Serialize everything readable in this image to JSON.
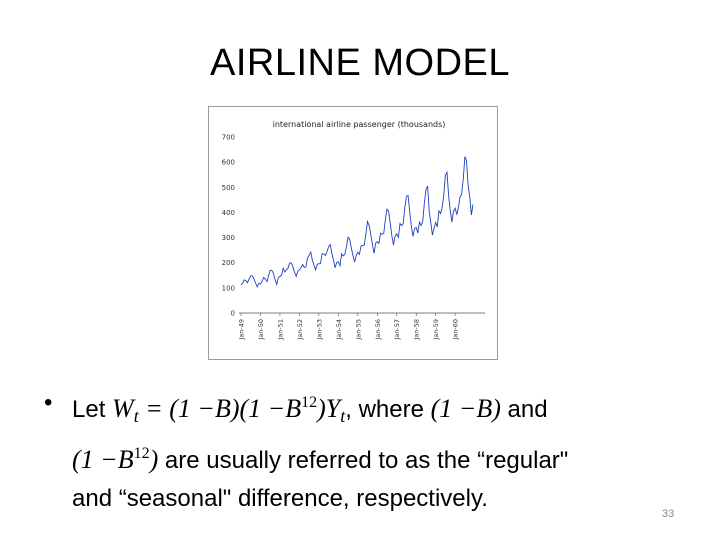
{
  "slide": {
    "title": "AIRLINE MODEL",
    "page_number": "33"
  },
  "bullet": {
    "dot": "•",
    "t1": "Let ",
    "W": "W",
    "t_sub": "t",
    "eq": " = (1 −B)(1 −B",
    "exp12a": "12",
    "eq_close": ")Y",
    "t_sub2": "t",
    "t2": ", where ",
    "m1": "(1 −B)",
    "t3": " and",
    "m2a": "(1 −B",
    "exp12b": "12",
    "m2b": ")",
    "t4": " are usually referred to as the “regular\"",
    "t5": "and “seasonal\" difference, respectively."
  },
  "chart_data": {
    "type": "line",
    "title": "international airline passenger (thousands)",
    "ylim": [
      0,
      700
    ],
    "yticks": [
      "700",
      "600",
      "500",
      "400",
      "300",
      "200",
      "100",
      "0"
    ],
    "xticks": [
      "Jan-49",
      "Jan-50",
      "Jan-51",
      "Jan-52",
      "Jan-53",
      "Jan-54",
      "Jan-55",
      "Jan-56",
      "Jan-57",
      "Jan-58",
      "Jan-59",
      "Jan-60"
    ],
    "grid": false,
    "line_color": "#1f3fbf",
    "series": [
      {
        "values": [
          112,
          118,
          132,
          129,
          121,
          135,
          148,
          148,
          136,
          119,
          104,
          118,
          115,
          126,
          141,
          135,
          125,
          149,
          170,
          170,
          158,
          133,
          114,
          140,
          145,
          150,
          178,
          163,
          172,
          178,
          199,
          199,
          184,
          162,
          146,
          166,
          171,
          180,
          193,
          181,
          183,
          218,
          230,
          242,
          209,
          191,
          172,
          194,
          196,
          196,
          236,
          235,
          229,
          243,
          264,
          272,
          237,
          211,
          180,
          201,
          204,
          188,
          235,
          227,
          234,
          264,
          302,
          293,
          259,
          229,
          203,
          229,
          242,
          233,
          267,
          269,
          270,
          315,
          364,
          347,
          312,
          274,
          237,
          278,
          284,
          277,
          317,
          313,
          318,
          374,
          413,
          405,
          355,
          306,
          271,
          306,
          315,
          301,
          356,
          348,
          355,
          422,
          465,
          467,
          404,
          347,
          305,
          336,
          340,
          318,
          362,
          348,
          363,
          435,
          491,
          505,
          404,
          359,
          310,
          337,
          360,
          342,
          406,
          396,
          420,
          472,
          548,
          559,
          463,
          407,
          362,
          405,
          417,
          391,
          419,
          461,
          472,
          535,
          622,
          606,
          508,
          461,
          390,
          432
        ]
      }
    ]
  }
}
